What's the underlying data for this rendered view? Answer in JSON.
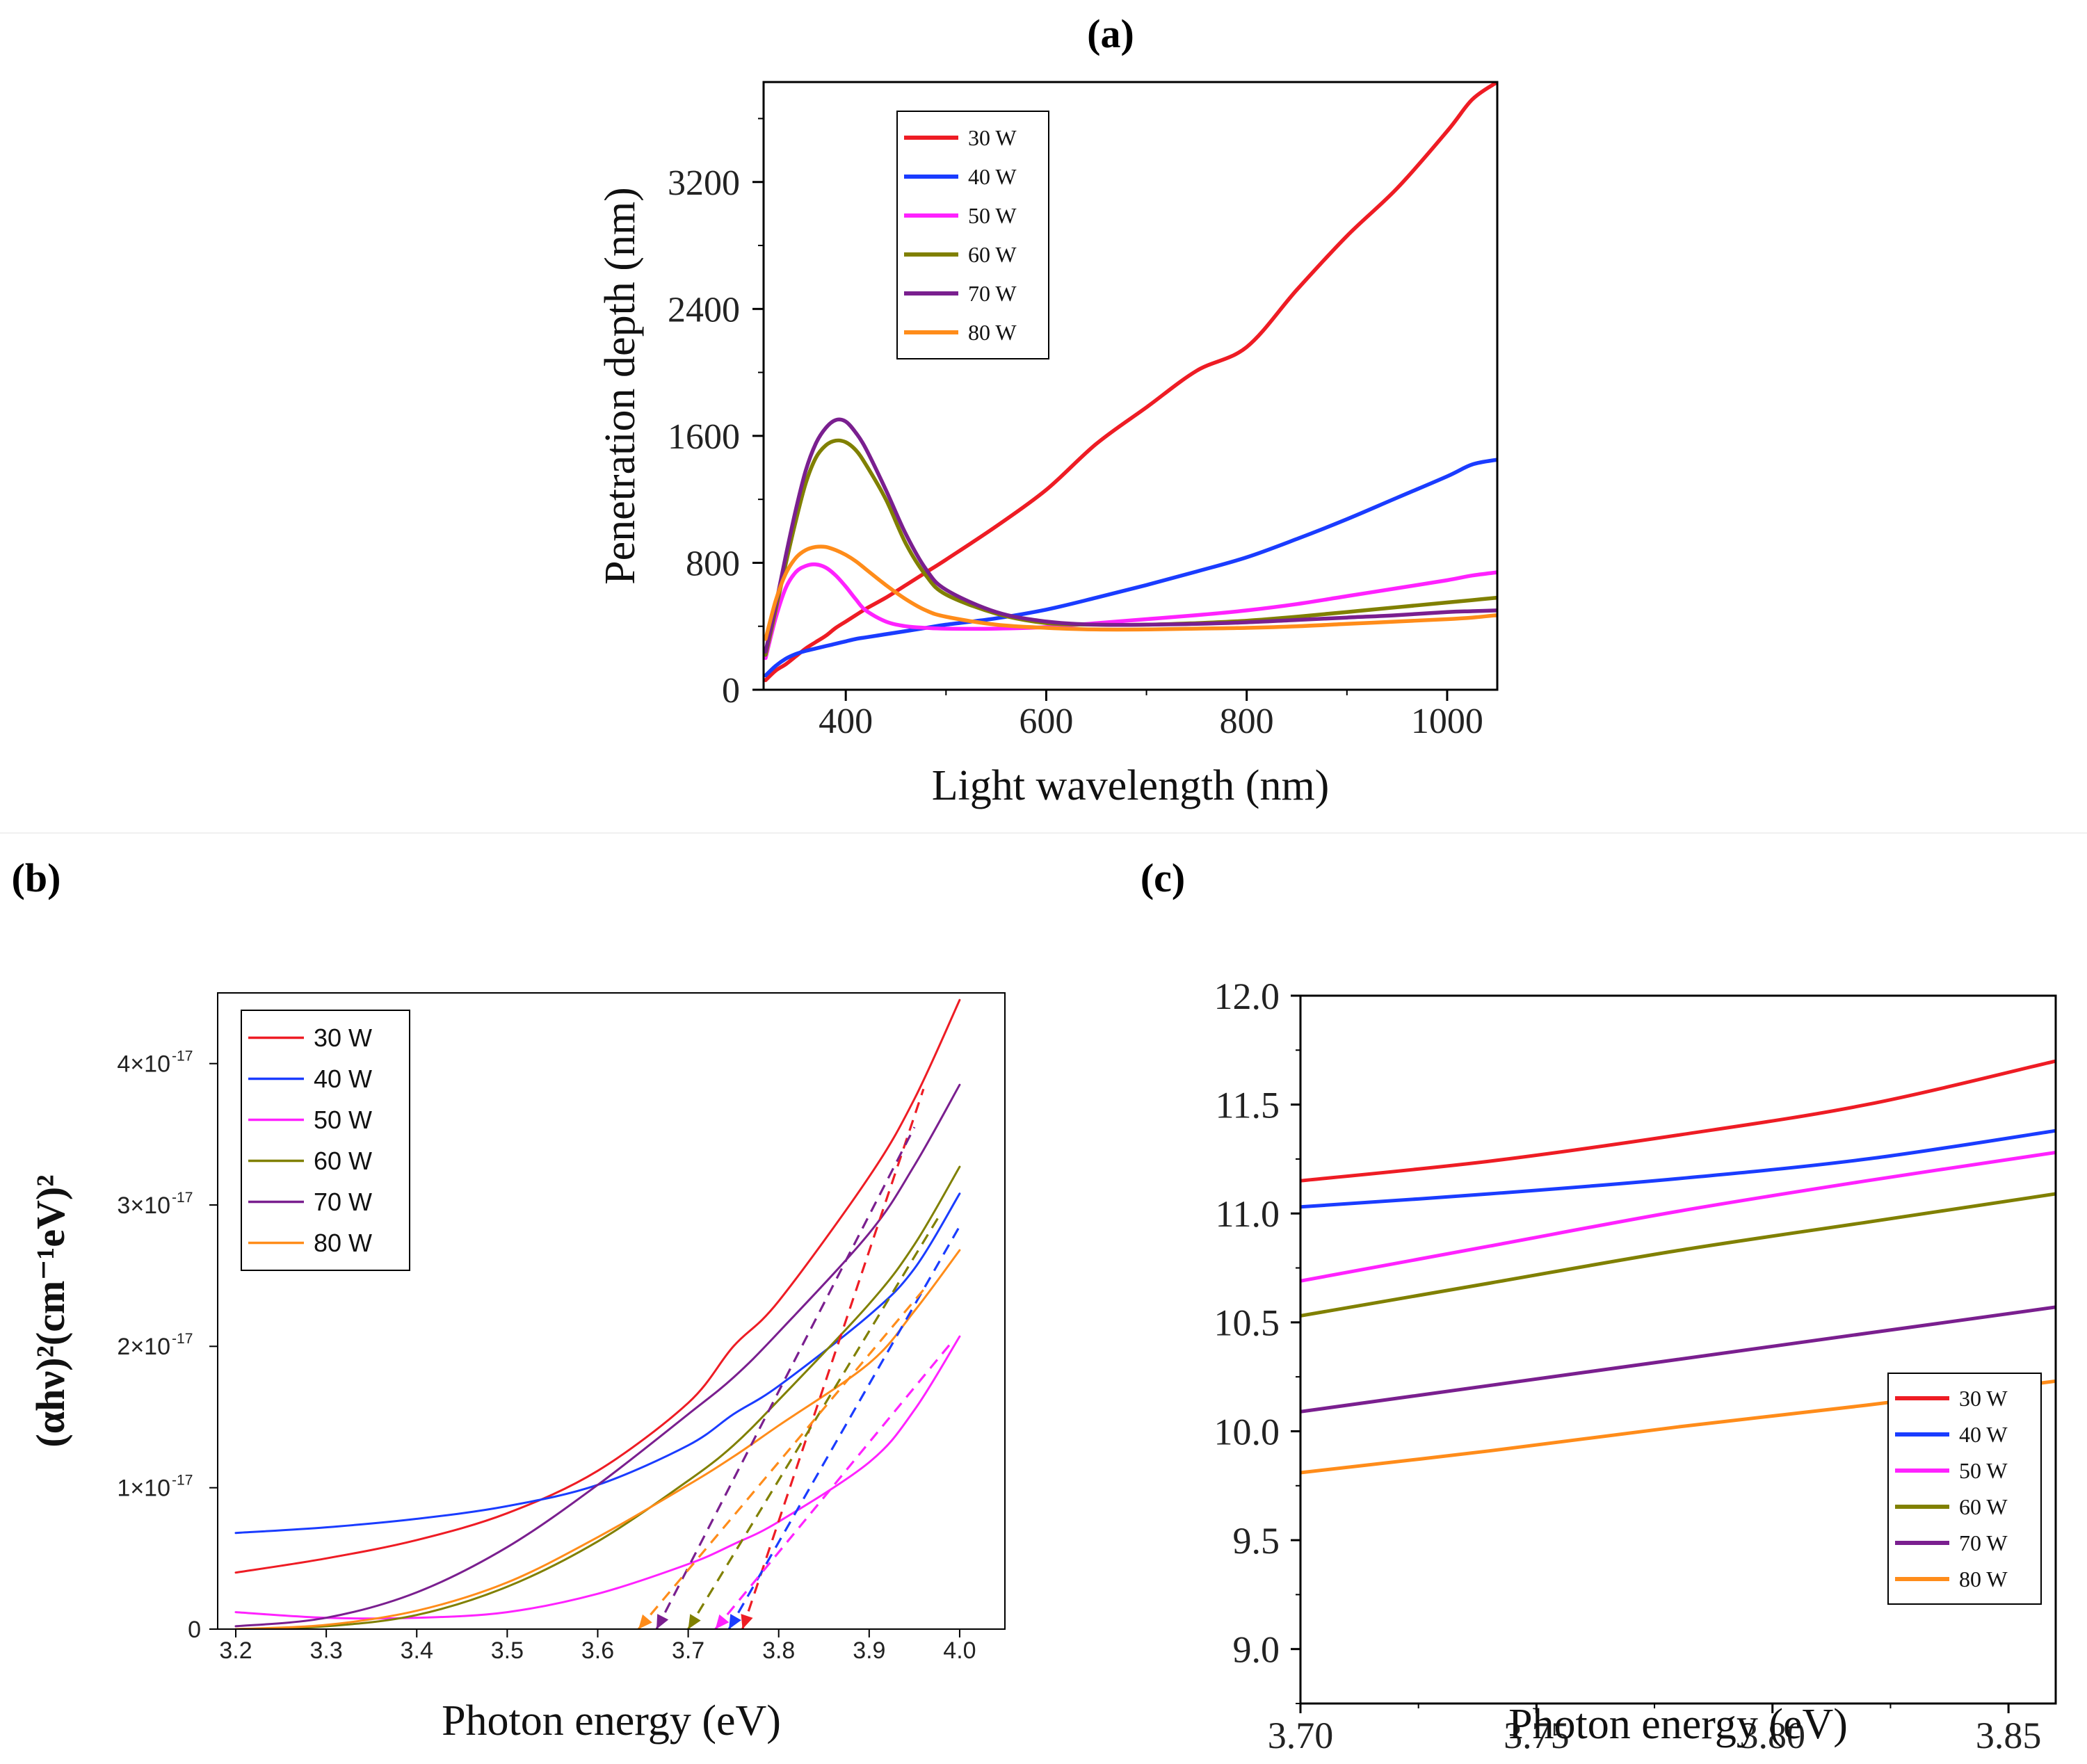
{
  "chart_data": [
    {
      "panel": "(a)",
      "type": "line",
      "xlabel": "Light wavelength (nm)",
      "ylabel": "Penetration depth (nm)",
      "xlim": [
        318,
        1050
      ],
      "ylim": [
        0,
        3830
      ],
      "xticks": [
        400,
        600,
        800,
        1000
      ],
      "xticklabels": [
        "400",
        "600",
        "800",
        "1000"
      ],
      "yticks": [
        0,
        800,
        1600,
        2400,
        3200
      ],
      "yticklabels": [
        "0",
        "800",
        "1600",
        "2400",
        "3200"
      ],
      "legend": [
        "30 W",
        "40 W",
        "50 W",
        "60 W",
        "70 W",
        "80 W"
      ],
      "legend_position": "top-left",
      "x": [
        320,
        330,
        340,
        350,
        360,
        370,
        380,
        390,
        400,
        410,
        420,
        440,
        460,
        480,
        500,
        550,
        600,
        650,
        700,
        750,
        800,
        850,
        900,
        950,
        1000,
        1025,
        1050
      ],
      "series": [
        {
          "name": "30 W",
          "color": "#ee1c24",
          "values": [
            60,
            120,
            160,
            210,
            260,
            300,
            340,
            390,
            430,
            470,
            510,
            580,
            660,
            740,
            820,
            1030,
            1260,
            1550,
            1780,
            2010,
            2160,
            2520,
            2860,
            3160,
            3520,
            3720,
            3830
          ]
        },
        {
          "name": "40 W",
          "color": "#1a3cff",
          "values": [
            90,
            150,
            195,
            225,
            245,
            260,
            275,
            290,
            305,
            320,
            330,
            350,
            370,
            390,
            410,
            450,
            505,
            580,
            660,
            745,
            835,
            950,
            1075,
            1210,
            1345,
            1420,
            1450
          ]
        },
        {
          "name": "50 W",
          "color": "#ff22ff",
          "values": [
            200,
            450,
            640,
            740,
            780,
            790,
            770,
            720,
            650,
            570,
            500,
            430,
            400,
            390,
            385,
            385,
            395,
            420,
            445,
            470,
            500,
            540,
            590,
            640,
            690,
            720,
            740
          ]
        },
        {
          "name": "60 W",
          "color": "#808000",
          "values": [
            220,
            500,
            790,
            1060,
            1300,
            1460,
            1540,
            1570,
            1560,
            1510,
            1420,
            1200,
            920,
            720,
            600,
            480,
            420,
            410,
            410,
            420,
            435,
            460,
            490,
            520,
            550,
            565,
            580
          ]
        },
        {
          "name": "70 W",
          "color": "#7a1f8f",
          "values": [
            240,
            530,
            840,
            1130,
            1380,
            1550,
            1650,
            1700,
            1690,
            1620,
            1520,
            1260,
            980,
            760,
            630,
            490,
            430,
            410,
            410,
            415,
            425,
            440,
            455,
            470,
            490,
            495,
            500
          ]
        },
        {
          "name": "80 W",
          "color": "#ff8c1a",
          "values": [
            320,
            560,
            730,
            830,
            880,
            900,
            900,
            880,
            850,
            810,
            760,
            660,
            570,
            500,
            460,
            410,
            390,
            380,
            380,
            385,
            390,
            400,
            415,
            430,
            445,
            455,
            470
          ]
        }
      ]
    },
    {
      "panel": "(b)",
      "type": "line",
      "xlabel": "Photon energy (eV)",
      "ylabel": "(αhν)²(cm⁻¹eV)²",
      "xlim": [
        3.18,
        4.05
      ],
      "ylim": [
        0,
        4.5e-17
      ],
      "xticks": [
        3.2,
        3.3,
        3.4,
        3.5,
        3.6,
        3.7,
        3.8,
        3.9,
        4.0
      ],
      "xticklabels": [
        "3.2",
        "3.3",
        "3.4",
        "3.5",
        "3.6",
        "3.7",
        "3.8",
        "3.9",
        "4.0"
      ],
      "yticks": [
        0,
        1e-17,
        2e-17,
        3e-17,
        4e-17
      ],
      "yticklabels": [
        "0",
        "1×10",
        "2×10",
        "3×10",
        "4×10"
      ],
      "ytick_exponent": "-17",
      "legend": [
        "30 W",
        "40 W",
        "50 W",
        "60 W",
        "70 W",
        "80 W"
      ],
      "legend_position": "top-left",
      "x": [
        3.2,
        3.3,
        3.4,
        3.5,
        3.6,
        3.7,
        3.75,
        3.8,
        3.9,
        3.95,
        4.0
      ],
      "series": [
        {
          "name": "30 W",
          "color": "#ee1c24",
          "values": [
            4e-18,
            5e-18,
            6.3e-18,
            8.2e-18,
            1.12e-17,
            1.6e-17,
            2e-17,
            2.32e-17,
            3.2e-17,
            3.75e-17,
            4.45e-17
          ]
        },
        {
          "name": "40 W",
          "color": "#1a3cff",
          "values": [
            6.8e-18,
            7.2e-18,
            7.8e-18,
            8.7e-18,
            1.02e-17,
            1.3e-17,
            1.52e-17,
            1.72e-17,
            2.22e-17,
            2.55e-17,
            3.08e-17
          ]
        },
        {
          "name": "50 W",
          "color": "#ff22ff",
          "values": [
            1.2e-18,
            8e-19,
            8e-19,
            1.2e-18,
            2.5e-18,
            4.6e-18,
            6e-18,
            7.6e-18,
            1.18e-17,
            1.55e-17,
            2.07e-17
          ]
        },
        {
          "name": "60 W",
          "color": "#808000",
          "values": [
            0.0,
            2e-19,
            1e-18,
            3e-18,
            6.2e-18,
            1.05e-17,
            1.3e-17,
            1.62e-17,
            2.3e-17,
            2.72e-17,
            3.27e-17
          ]
        },
        {
          "name": "70 W",
          "color": "#7a1f8f",
          "values": [
            2e-19,
            8e-19,
            2.6e-18,
            5.8e-18,
            1.02e-17,
            1.52e-17,
            1.78e-17,
            2.1e-17,
            2.8e-17,
            3.28e-17,
            3.85e-17
          ]
        },
        {
          "name": "80 W",
          "color": "#ff8c1a",
          "values": [
            0.0,
            3e-19,
            1.3e-18,
            3.3e-18,
            6.5e-18,
            1.02e-17,
            1.22e-17,
            1.44e-17,
            1.88e-17,
            2.25e-17,
            2.68e-17
          ]
        }
      ],
      "tauc_fits": [
        {
          "name": "30 W",
          "color": "#ee1c24",
          "from": [
            3.76,
            0
          ],
          "to": [
            3.96,
            3.82e-17
          ]
        },
        {
          "name": "40 W",
          "color": "#1a3cff",
          "from": [
            3.745,
            0
          ],
          "to": [
            4.0,
            2.85e-17
          ]
        },
        {
          "name": "50 W",
          "color": "#ff22ff",
          "from": [
            3.73,
            0
          ],
          "to": [
            3.99,
            2.02e-17
          ]
        },
        {
          "name": "60 W",
          "color": "#808000",
          "from": [
            3.7,
            0
          ],
          "to": [
            3.98,
            2.95e-17
          ]
        },
        {
          "name": "70 W",
          "color": "#7a1f8f",
          "from": [
            3.665,
            0
          ],
          "to": [
            3.95,
            3.55e-17
          ]
        },
        {
          "name": "80 W",
          "color": "#ff8c1a",
          "from": [
            3.645,
            0
          ],
          "to": [
            3.96,
            2.4e-17
          ]
        }
      ]
    },
    {
      "panel": "(c)",
      "type": "line",
      "xlabel": "Photon energy (eV)",
      "ylabel": "",
      "xlim": [
        3.7,
        3.86
      ],
      "ylim": [
        8.75,
        12.0
      ],
      "xticks": [
        3.7,
        3.75,
        3.8,
        3.85
      ],
      "xticklabels": [
        "3.70",
        "3.75",
        "3.80",
        "3.85"
      ],
      "yticks": [
        9.0,
        9.5,
        10.0,
        10.5,
        11.0,
        11.5,
        12.0
      ],
      "yticklabels": [
        "9.0",
        "9.5",
        "10.0",
        "10.5",
        "11.0",
        "11.5",
        "12.0"
      ],
      "legend": [
        "30 W",
        "40 W",
        "50 W",
        "60 W",
        "70 W",
        "80 W"
      ],
      "legend_position": "bottom-right",
      "x": [
        3.7,
        3.74,
        3.78,
        3.82,
        3.86
      ],
      "series": [
        {
          "name": "30 W",
          "color": "#ee1c24",
          "values": [
            11.15,
            11.24,
            11.36,
            11.5,
            11.7
          ]
        },
        {
          "name": "40 W",
          "color": "#1a3cff",
          "values": [
            11.03,
            11.09,
            11.16,
            11.25,
            11.38
          ]
        },
        {
          "name": "50 W",
          "color": "#ff22ff",
          "values": [
            10.69,
            10.85,
            11.01,
            11.15,
            11.28
          ]
        },
        {
          "name": "60 W",
          "color": "#808000",
          "values": [
            10.53,
            10.68,
            10.83,
            10.96,
            11.09
          ]
        },
        {
          "name": "70 W",
          "color": "#7a1f8f",
          "values": [
            10.09,
            10.21,
            10.33,
            10.45,
            10.57
          ]
        },
        {
          "name": "80 W",
          "color": "#ff8c1a",
          "values": [
            9.81,
            9.91,
            10.02,
            10.12,
            10.23
          ]
        }
      ]
    }
  ]
}
